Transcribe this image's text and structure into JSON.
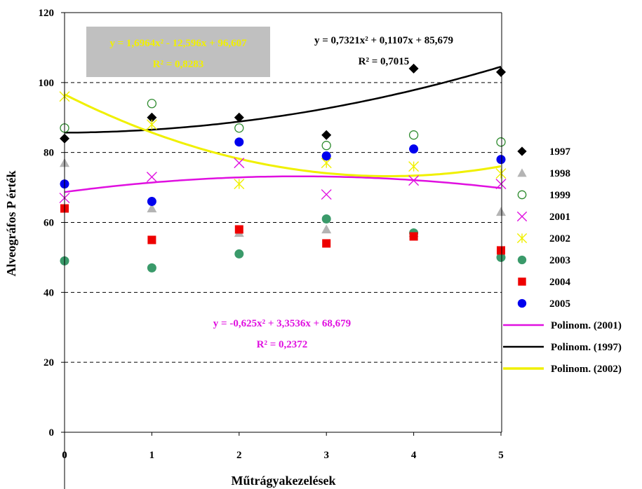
{
  "chart_data": {
    "type": "scatter",
    "xlabel": "Műtrágyakezelések",
    "ylabel": "Alveográfos P érték",
    "xlim": [
      0,
      5
    ],
    "ylim": [
      0,
      120
    ],
    "x_ticks": [
      "0",
      "1",
      "2",
      "3",
      "4",
      "5"
    ],
    "y_ticks": [
      "0",
      "20",
      "40",
      "60",
      "80",
      "100",
      "120"
    ],
    "grid": "horizontal dashed",
    "legend_position": "right",
    "x": [
      0,
      1,
      2,
      3,
      4,
      5
    ],
    "series": [
      {
        "name": "1997",
        "marker": "diamond",
        "color": "#000000",
        "values": [
          84,
          90,
          90,
          85,
          104,
          103
        ]
      },
      {
        "name": "1998",
        "marker": "triangle",
        "color": "#b4b4b4",
        "values": [
          77,
          64,
          57,
          58,
          57,
          63
        ]
      },
      {
        "name": "1999",
        "marker": "open-circle",
        "color": "#2e8b2e",
        "values": [
          87,
          94,
          87,
          82,
          85,
          83
        ]
      },
      {
        "name": "2001",
        "marker": "x",
        "color": "#e010e0",
        "values": [
          67,
          73,
          77,
          68,
          72,
          71
        ]
      },
      {
        "name": "2002",
        "marker": "asterisk",
        "color": "#f0f000",
        "values": [
          96,
          88,
          71,
          77,
          76,
          74
        ]
      },
      {
        "name": "2003",
        "marker": "circle",
        "color": "#3a9a6a",
        "values": [
          49,
          47,
          51,
          61,
          57,
          50
        ]
      },
      {
        "name": "2004",
        "marker": "square",
        "color": "#ee0000",
        "values": [
          64,
          55,
          58,
          54,
          56,
          52
        ]
      },
      {
        "name": "2005",
        "marker": "circle",
        "color": "#0000ee",
        "values": [
          71,
          66,
          83,
          79,
          81,
          78
        ]
      }
    ],
    "trendlines": [
      {
        "name": "Polinom. (2001)",
        "color": "#e010e0",
        "coef": [
          -0.625,
          3.3536,
          68.679
        ],
        "equation": "y = -0,625x² + 3,3536x + 68,679",
        "r2": "R² = 0,2372"
      },
      {
        "name": "Polinom. (1997)",
        "color": "#000000",
        "coef": [
          0.7321,
          0.1107,
          85.679
        ],
        "equation": "y = 0,7321x² + 0,1107x + 85,679",
        "r2": "R² = 0,7015"
      },
      {
        "name": "Polinom. (2002)",
        "color": "#f0f000",
        "coef": [
          1.6964,
          -12.596,
          96.607
        ],
        "equation": "y = 1,6964x² - 12,596x + 96,607",
        "r2": "R² = 0,8283"
      }
    ]
  }
}
